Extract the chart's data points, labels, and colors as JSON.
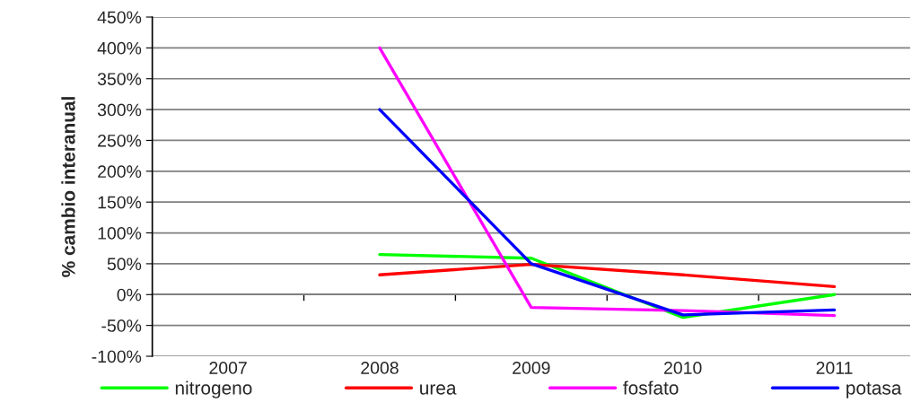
{
  "chart_data": {
    "type": "line",
    "ylabel": "% cambio interanual",
    "categories": [
      "2007",
      "2008",
      "2009",
      "2010",
      "2011"
    ],
    "series": [
      {
        "name": "nitrogeno",
        "color": "#00ff00",
        "values": [
          null,
          65,
          59,
          -37,
          0
        ]
      },
      {
        "name": "urea",
        "color": "#ff0000",
        "values": [
          null,
          32,
          49,
          32,
          13
        ]
      },
      {
        "name": "fosfato",
        "color": "#ff00ff",
        "values": [
          null,
          400,
          -21,
          -26,
          -34
        ]
      },
      {
        "name": "potasa",
        "color": "#0000ff",
        "values": [
          null,
          300,
          50,
          -33,
          -25
        ]
      }
    ],
    "ylim": [
      -100,
      450
    ],
    "yticks": [
      {
        "value": -100,
        "label": "-100%"
      },
      {
        "value": -50,
        "label": "-50%"
      },
      {
        "value": 0,
        "label": "0%"
      },
      {
        "value": 50,
        "label": "50%"
      },
      {
        "value": 100,
        "label": "100%"
      },
      {
        "value": 150,
        "label": "150%"
      },
      {
        "value": 200,
        "label": "200%"
      },
      {
        "value": 250,
        "label": "250%"
      },
      {
        "value": 300,
        "label": "300%"
      },
      {
        "value": 350,
        "label": "350%"
      },
      {
        "value": 400,
        "label": "400%"
      },
      {
        "value": 450,
        "label": "450%"
      }
    ],
    "grid": "y",
    "legend": "bottom",
    "line_style": "solid"
  }
}
